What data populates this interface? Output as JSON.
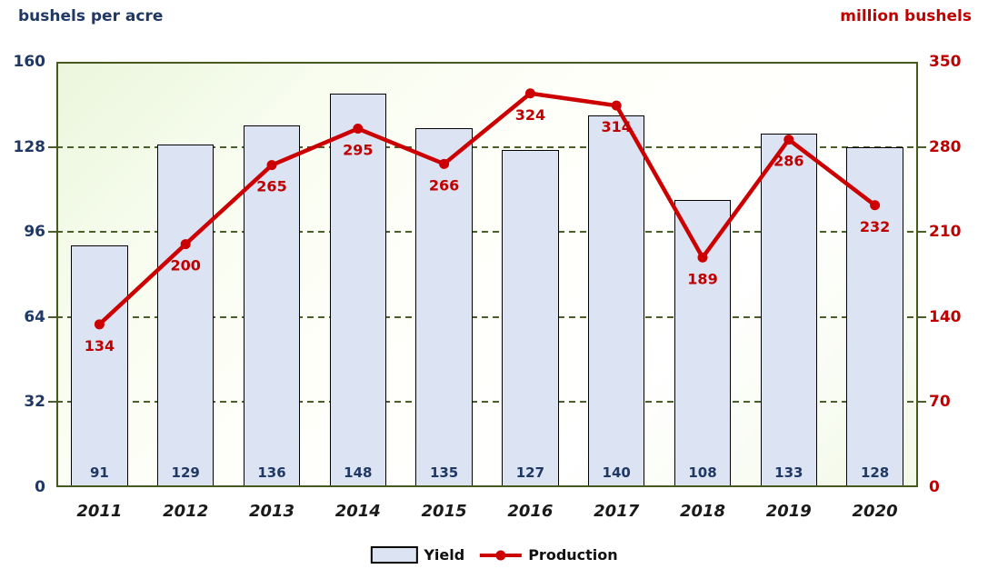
{
  "titles": {
    "left": "bushels per acre",
    "right": "million bushels"
  },
  "colors": {
    "navy": "#1F3864",
    "red": "#C00000",
    "line_red": "#CC0000",
    "plot_border_green": "#46591F",
    "grid_green": "#4A5F2B",
    "bar_fill": "#DCE3F2",
    "bar_border": "#000000",
    "year_text": "#1A1A1A"
  },
  "left_axis": {
    "title": "bushels per acre",
    "ticks": [
      160,
      128,
      96,
      64,
      32,
      0
    ],
    "max": 160
  },
  "right_axis": {
    "title": "million bushels",
    "ticks": [
      350,
      280,
      210,
      140,
      70,
      0
    ],
    "max": 350
  },
  "legend": {
    "yield_label": "Yield",
    "production_label": "Production"
  },
  "chart_data": {
    "type": "bar",
    "subtype": "combo bar + line, dual axis",
    "categories": [
      "2011",
      "2012",
      "2013",
      "2014",
      "2015",
      "2016",
      "2017",
      "2018",
      "2019",
      "2020"
    ],
    "series": [
      {
        "name": "Yield",
        "type": "bar",
        "axis": "left",
        "values": [
          91,
          129,
          136,
          148,
          135,
          127,
          140,
          108,
          133,
          128
        ]
      },
      {
        "name": "Production",
        "type": "line",
        "axis": "right",
        "values": [
          134,
          200,
          265,
          295,
          266,
          324,
          314,
          189,
          286,
          232
        ]
      }
    ],
    "xlabel": "",
    "ylabel_left": "bushels per acre",
    "ylabel_right": "million bushels",
    "left_ylim": [
      0,
      160
    ],
    "right_ylim": [
      0,
      350
    ],
    "grid": "horizontal dashed, dark green",
    "legend_position": "bottom center",
    "data_labels": "bar values inside bar bottoms (navy), line values below markers (red)"
  }
}
